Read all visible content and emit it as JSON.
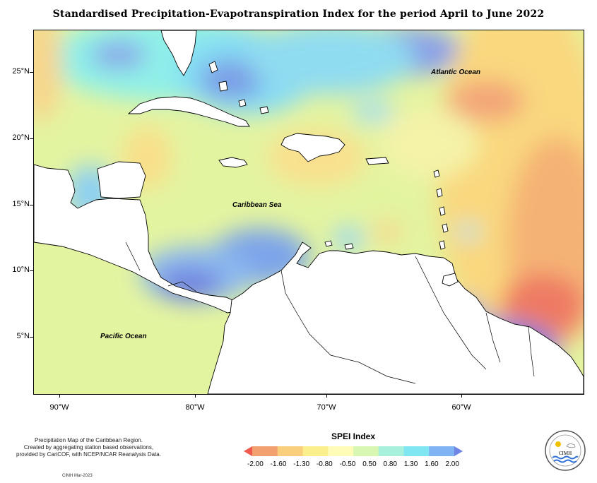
{
  "title": "Standardised Precipitation-Evapotranspiration Index for the period April to June 2022",
  "map": {
    "lat_ticks": [
      "25°N",
      "20°N",
      "15°N",
      "10°N",
      "5°N"
    ],
    "lon_ticks": [
      "90°W",
      "80°W",
      "70°W",
      "60°W"
    ],
    "place_labels": {
      "atlantic": "Atlantic Ocean",
      "caribbean": "Caribbean Sea",
      "pacific": "Pacific Ocean"
    }
  },
  "legend": {
    "title": "SPEI Index",
    "values": [
      "-2.00",
      "-1.60",
      "-1.30",
      "-0.80",
      "-0.50",
      "0.50",
      "0.80",
      "1.30",
      "1.60",
      "2.00"
    ],
    "colors": [
      "#ef5a4c",
      "#f3a070",
      "#f9cf7e",
      "#fbee8c",
      "#fffbb9",
      "#d8f7b2",
      "#a8f0dc",
      "#7fe6f2",
      "#7fb3f2",
      "#6f85e6"
    ]
  },
  "caption": {
    "line1": "Precipitation Map of the Caribbean Region.",
    "line2": "Created by aggregating station based observations,",
    "line3": "provided by CariCOF, with NCEP/NCAR Reanalysis Data.",
    "credit": "CIMH Mar-2023"
  },
  "logo": {
    "text": "CIMH"
  }
}
